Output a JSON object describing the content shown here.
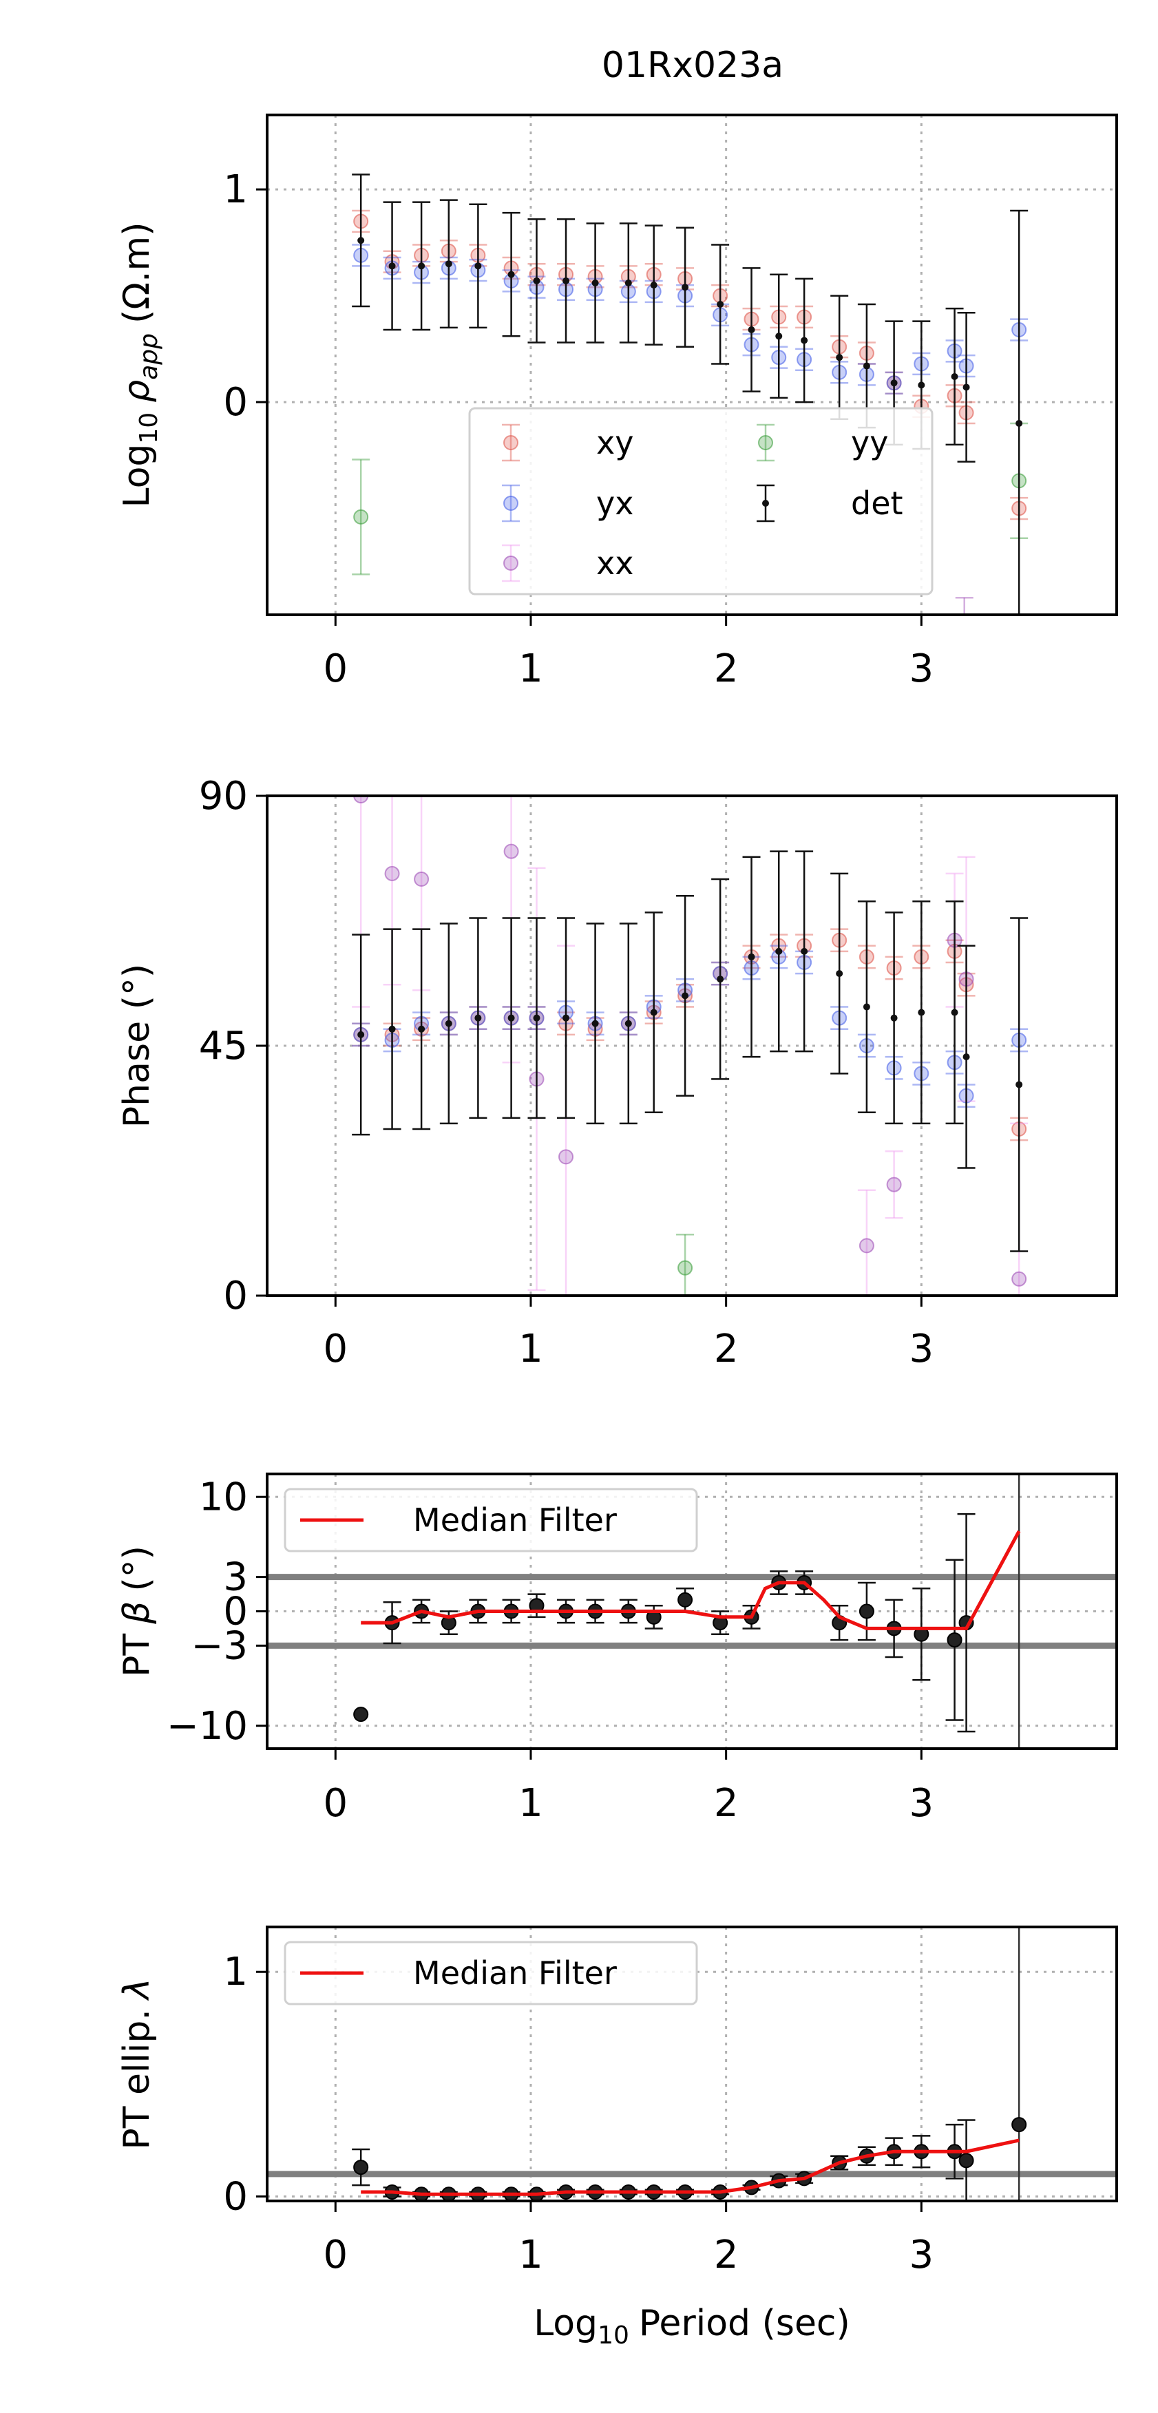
{
  "figure": {
    "title": "01Rx023a"
  },
  "colors": {
    "xy": "#e05a50",
    "yx": "#4a62e8",
    "xx": "#a050b8",
    "xx_err": "#f0a0f0",
    "yy": "#3fa03f",
    "det": "#111111",
    "median_filter": "#ee1111",
    "guide_line": "#808080"
  },
  "chart_data": [
    {
      "id": "rho",
      "type": "scatter",
      "ylabel_prefix": "Log",
      "ylabel_sub": "10",
      "ylabel_symbol": "ρ",
      "ylabel_symbol_sub": "app",
      "ylabel_unit": "(Ω.m)",
      "xlim": [
        -0.35,
        4.0
      ],
      "ylim": [
        -1.0,
        1.35
      ],
      "xticks": [
        "0",
        "1",
        "2",
        "3"
      ],
      "yticks": [
        "0",
        "1"
      ],
      "grid": true,
      "legend": {
        "placement": "bottom-center",
        "columns": 2,
        "entries": [
          "xy",
          "yx",
          "xx",
          "yy",
          "det"
        ]
      },
      "series": [
        {
          "name": "xy",
          "x": [
            0.13,
            0.29,
            0.44,
            0.58,
            0.73,
            0.9,
            1.03,
            1.18,
            1.33,
            1.5,
            1.63,
            1.79,
            1.97,
            2.13,
            2.27,
            2.4,
            2.58,
            2.72,
            2.86,
            3.0,
            3.17,
            3.23,
            3.5
          ],
          "y": [
            0.85,
            0.66,
            0.69,
            0.71,
            0.69,
            0.63,
            0.6,
            0.6,
            0.59,
            0.59,
            0.6,
            0.58,
            0.5,
            0.39,
            0.4,
            0.4,
            0.26,
            0.23,
            0.09,
            -0.02,
            0.03,
            -0.05,
            -0.5
          ],
          "err": 0.05
        },
        {
          "name": "yx",
          "x": [
            0.13,
            0.29,
            0.44,
            0.58,
            0.73,
            0.9,
            1.03,
            1.18,
            1.33,
            1.5,
            1.63,
            1.79,
            1.97,
            2.13,
            2.27,
            2.4,
            2.58,
            2.72,
            2.86,
            3.0,
            3.17,
            3.23,
            3.5
          ],
          "y": [
            0.69,
            0.63,
            0.61,
            0.63,
            0.62,
            0.57,
            0.54,
            0.53,
            0.53,
            0.52,
            0.52,
            0.5,
            0.41,
            0.27,
            0.21,
            0.2,
            0.14,
            0.13,
            0.09,
            0.18,
            0.24,
            0.17,
            0.34
          ],
          "err": 0.05
        },
        {
          "name": "xx",
          "x": [
            3.22
          ],
          "y": [
            -1.04
          ],
          "err": 0.12
        },
        {
          "name": "yy",
          "x": [
            0.13,
            3.5
          ],
          "y": [
            -0.54,
            -0.37
          ],
          "err": 0.27
        },
        {
          "name": "det",
          "x": [
            0.13,
            0.29,
            0.44,
            0.58,
            0.73,
            0.9,
            1.03,
            1.18,
            1.33,
            1.5,
            1.63,
            1.79,
            1.97,
            2.13,
            2.27,
            2.4,
            2.58,
            2.72,
            2.86,
            3.0,
            3.17,
            3.23,
            3.5
          ],
          "y": [
            0.76,
            0.64,
            0.64,
            0.65,
            0.64,
            0.6,
            0.57,
            0.57,
            0.56,
            0.56,
            0.55,
            0.54,
            0.46,
            0.34,
            0.31,
            0.29,
            0.21,
            0.17,
            0.09,
            0.08,
            0.12,
            0.07,
            -0.1
          ],
          "err": [
            0.31,
            0.3,
            0.3,
            0.3,
            0.29,
            0.29,
            0.29,
            0.29,
            0.28,
            0.28,
            0.28,
            0.28,
            0.28,
            0.29,
            0.29,
            0.29,
            0.29,
            0.29,
            0.29,
            0.3,
            0.32,
            0.35,
            1.0
          ]
        }
      ]
    },
    {
      "id": "phase",
      "type": "scatter",
      "ylabel": "Phase (°)",
      "xlim": [
        -0.35,
        4.0
      ],
      "ylim": [
        0,
        90
      ],
      "xticks": [
        "0",
        "1",
        "2",
        "3"
      ],
      "yticks": [
        "0",
        "45",
        "90"
      ],
      "grid": true,
      "series": [
        {
          "name": "xy",
          "x": [
            0.13,
            0.29,
            0.44,
            0.58,
            0.73,
            0.9,
            1.03,
            1.18,
            1.33,
            1.5,
            1.63,
            1.79,
            1.97,
            2.13,
            2.27,
            2.4,
            2.58,
            2.72,
            2.86,
            3.0,
            3.17,
            3.23,
            3.5
          ],
          "y": [
            47,
            47,
            48,
            49,
            50,
            50,
            50,
            49,
            48,
            49,
            51,
            54,
            58,
            61,
            63,
            63,
            64,
            61,
            59,
            61,
            62,
            56,
            30
          ],
          "err": 2
        },
        {
          "name": "yx",
          "x": [
            0.13,
            0.29,
            0.44,
            0.58,
            0.73,
            0.9,
            1.03,
            1.18,
            1.33,
            1.5,
            1.63,
            1.79,
            1.97,
            2.13,
            2.27,
            2.4,
            2.58,
            2.72,
            2.86,
            3.0,
            3.17,
            3.23,
            3.5
          ],
          "y": [
            47,
            46,
            49,
            49,
            50,
            50,
            50,
            51,
            49,
            49,
            52,
            55,
            58,
            59,
            61,
            60,
            50,
            45,
            41,
            40,
            42,
            36,
            46
          ],
          "err": 2
        },
        {
          "name": "xx",
          "x": [
            0.13,
            0.29,
            0.44,
            0.9,
            1.03,
            1.18,
            2.72,
            2.86,
            3.17,
            3.23,
            3.5
          ],
          "y": [
            90,
            76,
            75,
            80,
            39,
            25,
            9,
            20,
            64,
            57,
            3
          ],
          "err": [
            38,
            20,
            20,
            38,
            38,
            38,
            10,
            6,
            12,
            22,
            28
          ]
        },
        {
          "name": "yy",
          "x": [
            1.79
          ],
          "y": [
            5
          ],
          "err": 6
        },
        {
          "name": "det",
          "x": [
            0.13,
            0.29,
            0.44,
            0.58,
            0.73,
            0.9,
            1.03,
            1.18,
            1.33,
            1.5,
            1.63,
            1.79,
            1.97,
            2.13,
            2.27,
            2.4,
            2.58,
            2.72,
            2.86,
            3.0,
            3.17,
            3.23,
            3.5
          ],
          "y": [
            47,
            48,
            48,
            49,
            50,
            50,
            50,
            50,
            49,
            49,
            51,
            54,
            57,
            61,
            62,
            62,
            58,
            52,
            50,
            51,
            51,
            43,
            38
          ],
          "err": [
            18,
            18,
            18,
            18,
            18,
            18,
            18,
            18,
            18,
            18,
            18,
            18,
            18,
            18,
            18,
            18,
            18,
            19,
            19,
            20,
            20,
            20,
            30
          ]
        }
      ]
    },
    {
      "id": "beta",
      "type": "scatter",
      "ylabel_prefix": "PT",
      "ylabel_symbol": "β",
      "ylabel_unit": "(°)",
      "xlim": [
        -0.35,
        4.0
      ],
      "ylim": [
        -12,
        12
      ],
      "xticks": [
        "0",
        "1",
        "2",
        "3"
      ],
      "yticks": [
        "−10",
        "−3",
        "0",
        "3",
        "10"
      ],
      "hlines": [
        3,
        -3
      ],
      "vline_x": 3.5,
      "grid": true,
      "legend": {
        "placement": "top-left",
        "entries": [
          "Median Filter"
        ]
      },
      "series": [
        {
          "name": "",
          "x": [
            0.13,
            0.29,
            0.44,
            0.58,
            0.73,
            0.9,
            1.03,
            1.18,
            1.33,
            1.5,
            1.63,
            1.79,
            1.97,
            2.13,
            2.27,
            2.4,
            2.58,
            2.72,
            2.86,
            3.0,
            3.17,
            3.23
          ],
          "y": [
            -9,
            -1,
            0,
            -1,
            0,
            0,
            0.5,
            0,
            0,
            0,
            -0.5,
            1,
            -1,
            -0.5,
            2.5,
            2.5,
            -1,
            0,
            -1.5,
            -2,
            -2.5,
            -1
          ],
          "err": [
            0,
            1.8,
            1.0,
            1.0,
            1.0,
            1.0,
            1.0,
            1.0,
            1.0,
            1.0,
            1.0,
            1.0,
            1.0,
            1.0,
            1.0,
            1.0,
            1.5,
            2.5,
            2.5,
            4.0,
            7.0,
            9.5
          ]
        },
        {
          "name": "Median Filter",
          "x": [
            0.13,
            0.29,
            0.44,
            0.58,
            0.73,
            0.9,
            1.03,
            1.18,
            1.33,
            1.5,
            1.63,
            1.79,
            1.97,
            2.13,
            2.2,
            2.27,
            2.4,
            2.5,
            2.58,
            2.72,
            2.86,
            3.0,
            3.17,
            3.23,
            3.5
          ],
          "y": [
            -1,
            -1,
            0,
            -0.5,
            0,
            0,
            0,
            0,
            0,
            0,
            0,
            0,
            -0.5,
            -0.5,
            2,
            2.5,
            2.5,
            1,
            -0.5,
            -1.5,
            -1.5,
            -1.5,
            -1.5,
            -1.5,
            7
          ]
        }
      ]
    },
    {
      "id": "ellip",
      "type": "scatter",
      "ylabel_prefix": "PT ellip.",
      "ylabel_symbol": "λ",
      "xlabel_prefix": "Log",
      "xlabel_sub": "10",
      "xlabel_rest": "Period (sec)",
      "xlim": [
        -0.35,
        4.0
      ],
      "ylim": [
        -0.02,
        1.2
      ],
      "xticks": [
        "0",
        "1",
        "2",
        "3"
      ],
      "yticks": [
        "0",
        "1"
      ],
      "hlines": [
        0.1
      ],
      "vline_x": 3.5,
      "grid": true,
      "legend": {
        "placement": "top-left",
        "entries": [
          "Median Filter"
        ]
      },
      "series": [
        {
          "name": "",
          "x": [
            0.13,
            0.29,
            0.44,
            0.58,
            0.73,
            0.9,
            1.03,
            1.18,
            1.33,
            1.5,
            1.63,
            1.79,
            1.97,
            2.13,
            2.27,
            2.4,
            2.58,
            2.72,
            2.86,
            3.0,
            3.17,
            3.23,
            3.5
          ],
          "y": [
            0.13,
            0.02,
            0.01,
            0.01,
            0.01,
            0.01,
            0.01,
            0.02,
            0.02,
            0.02,
            0.02,
            0.02,
            0.02,
            0.04,
            0.07,
            0.08,
            0.15,
            0.18,
            0.2,
            0.2,
            0.2,
            0.16,
            0.32
          ],
          "err": [
            0.08,
            0.02,
            0.01,
            0.01,
            0.01,
            0.01,
            0.01,
            0.01,
            0.01,
            0.01,
            0.01,
            0.01,
            0.01,
            0.01,
            0.02,
            0.02,
            0.03,
            0.04,
            0.06,
            0.07,
            0.12,
            0.18,
            0
          ]
        },
        {
          "name": "Median Filter",
          "x": [
            0.13,
            0.29,
            0.44,
            0.58,
            0.73,
            0.9,
            1.03,
            1.18,
            1.33,
            1.5,
            1.63,
            1.79,
            1.97,
            2.13,
            2.27,
            2.4,
            2.58,
            2.72,
            2.86,
            3.0,
            3.17,
            3.23,
            3.5
          ],
          "y": [
            0.02,
            0.02,
            0.01,
            0.01,
            0.01,
            0.01,
            0.01,
            0.02,
            0.02,
            0.02,
            0.02,
            0.02,
            0.02,
            0.04,
            0.07,
            0.08,
            0.15,
            0.18,
            0.2,
            0.2,
            0.2,
            0.2,
            0.25
          ]
        }
      ]
    }
  ]
}
